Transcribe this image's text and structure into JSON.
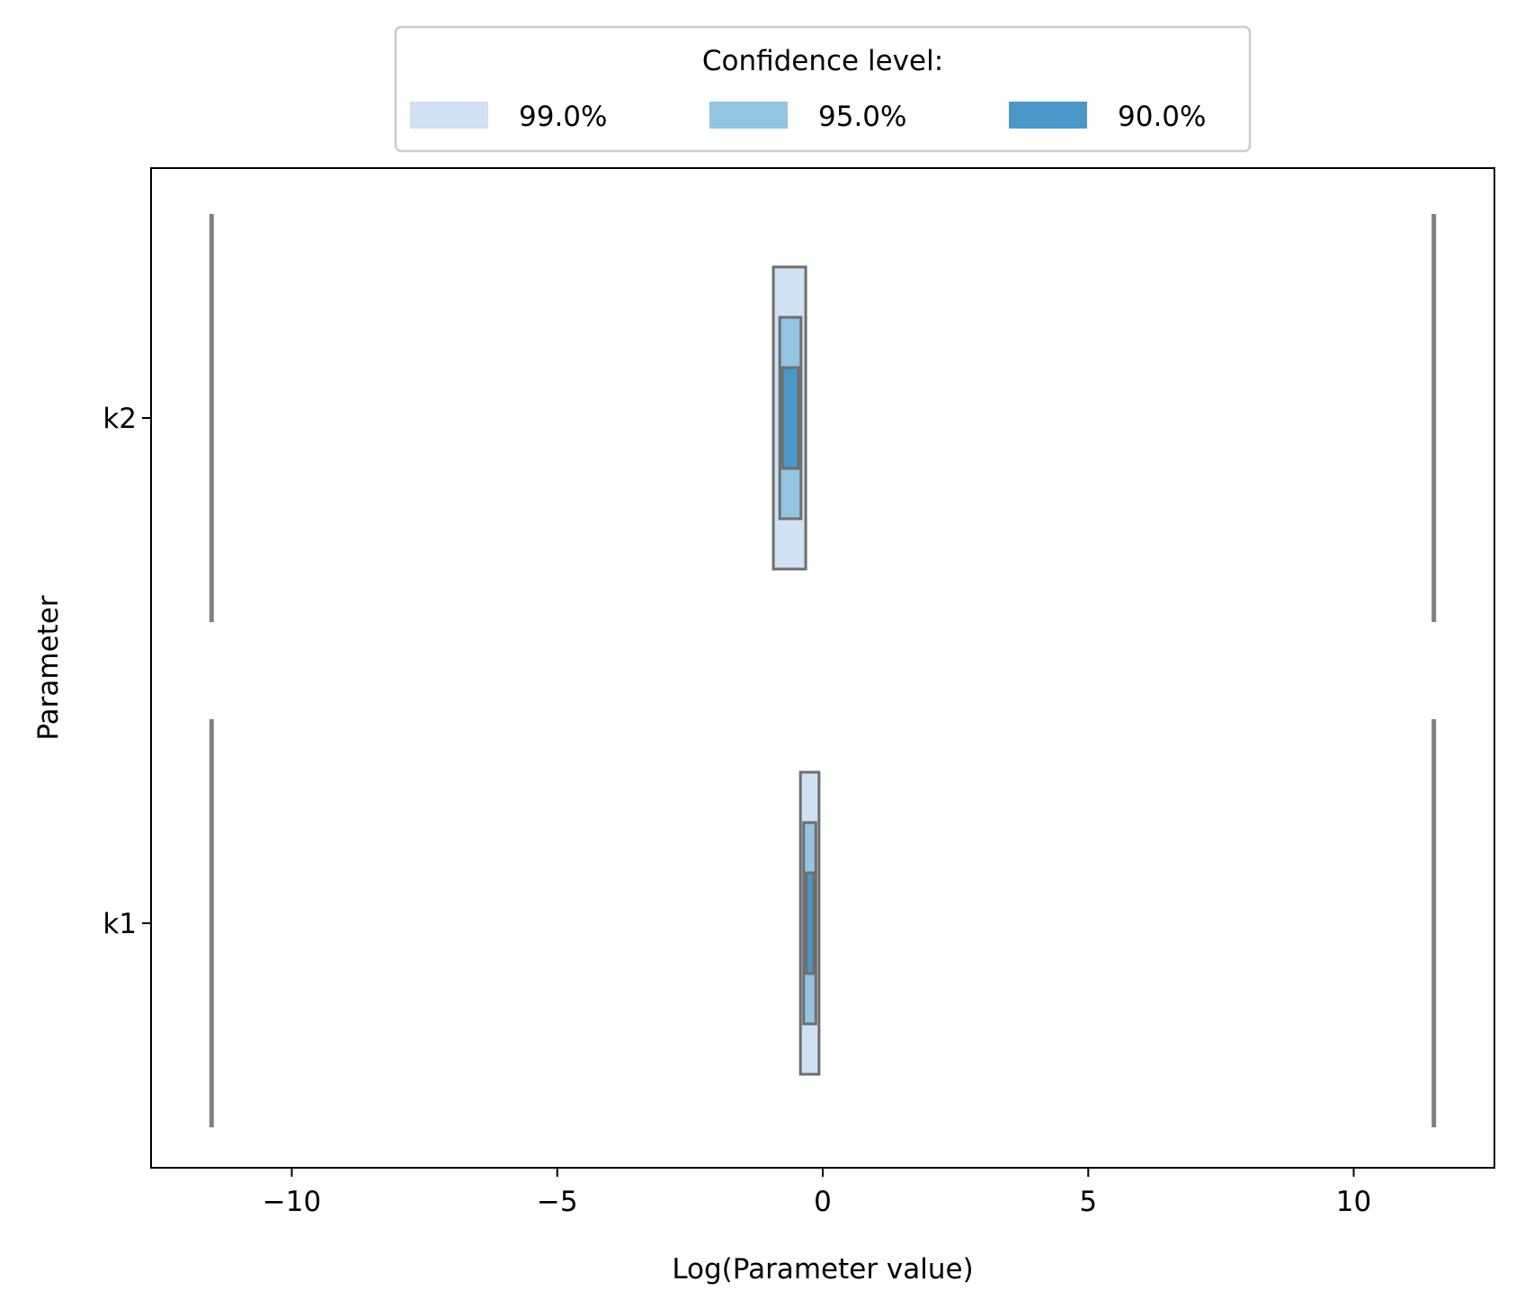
{
  "chart_data": {
    "type": "confidence-interval-boxes",
    "title": "",
    "xlabel": "Log(Parameter value)",
    "ylabel": "Parameter",
    "xlim": [
      -12.65,
      12.65
    ],
    "xticks": [
      -10,
      -5,
      0,
      5,
      10
    ],
    "xtick_labels": [
      "−10",
      "−5",
      "0",
      "5",
      "10"
    ],
    "categories": [
      "k2",
      "k1"
    ],
    "bounds": [
      -11.51,
      11.51
    ],
    "legend": {
      "title": "Confidence level:",
      "placement": "top-center",
      "entries": [
        {
          "label": "99.0%",
          "color": "#cfe1f2"
        },
        {
          "label": "95.0%",
          "color": "#93c4e1"
        },
        {
          "label": "90.0%",
          "color": "#4a98c9"
        }
      ]
    },
    "series": [
      {
        "parameter": "k2",
        "intervals": [
          {
            "level": "99.0%",
            "low": -0.93,
            "high": -0.32
          },
          {
            "level": "95.0%",
            "low": -0.81,
            "high": -0.41
          },
          {
            "level": "90.0%",
            "low": -0.76,
            "high": -0.46
          }
        ]
      },
      {
        "parameter": "k1",
        "intervals": [
          {
            "level": "99.0%",
            "low": -0.42,
            "high": -0.07
          },
          {
            "level": "95.0%",
            "low": -0.36,
            "high": -0.13
          },
          {
            "level": "90.0%",
            "low": -0.31,
            "high": -0.17
          }
        ]
      }
    ],
    "colors": {
      "edge": "#6e6e6e",
      "bound_line": "#808080",
      "axis": "#000000"
    }
  }
}
